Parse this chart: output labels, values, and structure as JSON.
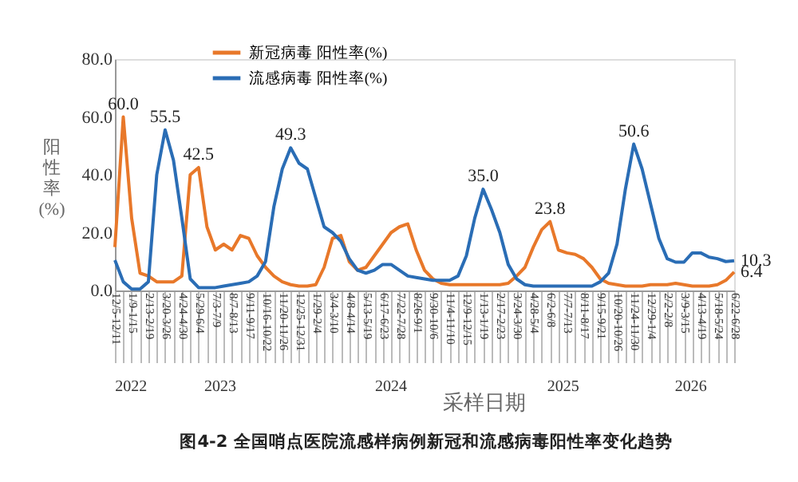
{
  "chart_data": {
    "type": "line",
    "title": "图4-2 全国哨点医院流感样病例新冠和流感病毒阳性率变化趋势",
    "xlabel": "采样日期",
    "ylabel": "阳性率(%)",
    "annotations": [
      "2022",
      "2023",
      "2024",
      "2025",
      "2026"
    ],
    "categories": [
      "12/5-12/11",
      null,
      "1/9-1/15",
      null,
      "2/13-2/19",
      null,
      "3/20-3/26",
      null,
      "4/24-4/30",
      null,
      "5/29-6/4",
      null,
      "7/3-7/9",
      null,
      "8/7-8/13",
      null,
      "9/11-9/17",
      null,
      "10/16-10/22",
      null,
      "11/20-11/26",
      null,
      "12/25-12/31",
      null,
      "1/29-2/4",
      null,
      "3/4-3/10",
      null,
      "4/8-4/14",
      null,
      "5/13-5/19",
      null,
      "6/17-6/23",
      null,
      "7/22-7/28",
      null,
      "8/26-9/1",
      null,
      "9/30-10/6",
      null,
      "11/4-11/10",
      null,
      "12/9-12/15",
      null,
      "1/13-1/19",
      null,
      "2/17-2/23",
      null,
      "3/24-3/30",
      null,
      "4/28-5/4",
      null,
      "6/2-6/8",
      null,
      "7/7-7/13",
      null,
      "8/11-8/17",
      null,
      "9/15-9/21",
      null,
      "10/20-10/26",
      null,
      "11/24-11/30",
      null,
      "12/29-1/4",
      null,
      "2/2-2/8",
      null,
      "3/9-3/15",
      null,
      "4/13-4/19",
      null,
      "5/18-5/24",
      null,
      "6/22-6/28"
    ],
    "series": [
      {
        "name": "新冠病毒 阳性率(%)",
        "color": "#e8782a",
        "values": [
          15,
          60,
          25,
          6,
          5,
          3,
          3,
          3,
          5,
          40,
          42.5,
          22,
          14,
          16,
          14,
          19,
          18,
          12,
          8,
          5,
          3,
          2,
          1.5,
          1.5,
          2,
          8,
          18,
          19,
          10,
          7,
          8,
          12,
          16,
          20,
          22,
          23,
          14,
          7,
          4,
          2.5,
          2,
          2,
          2,
          2,
          2,
          2,
          2,
          2.5,
          5,
          8,
          15,
          21,
          23.8,
          14,
          13,
          12.5,
          11,
          8,
          4,
          2.5,
          2,
          1.5,
          1.5,
          1.5,
          2,
          2,
          2,
          2.5,
          2,
          1.5,
          1.5,
          1.5,
          2,
          3.5,
          6.4
        ],
        "value_labels": [
          null,
          "60.0",
          null,
          null,
          null,
          null,
          null,
          null,
          null,
          null,
          "42.5",
          null,
          null,
          null,
          null,
          null,
          null,
          null,
          null,
          null,
          null,
          null,
          null,
          null,
          null,
          null,
          null,
          null,
          null,
          null,
          null,
          null,
          null,
          null,
          null,
          null,
          null,
          null,
          null,
          null,
          null,
          null,
          null,
          null,
          null,
          null,
          null,
          null,
          null,
          null,
          null,
          null,
          "23.8",
          null,
          null,
          null,
          null,
          null,
          null,
          null,
          null,
          null,
          null,
          null,
          null,
          null,
          null,
          null,
          null,
          null,
          null,
          null,
          null,
          null,
          "6.4"
        ]
      },
      {
        "name": "流感病毒 阳性率(%)",
        "color": "#2a6db5",
        "values": [
          10.5,
          3,
          0.5,
          0.5,
          3,
          40,
          55.5,
          45,
          25,
          4,
          1,
          1,
          1,
          1.5,
          2,
          2.5,
          3,
          5,
          10,
          29,
          42,
          49.3,
          44,
          42,
          32,
          22,
          20,
          17,
          11,
          7,
          6,
          7,
          9,
          9,
          7,
          5,
          4.5,
          4,
          3.5,
          3.5,
          3.5,
          5,
          12,
          25,
          35,
          28,
          20,
          9,
          4,
          2,
          1.5,
          1.5,
          1.5,
          1.5,
          1.5,
          1.5,
          1.5,
          1.5,
          3,
          6,
          16,
          35,
          50.6,
          42,
          30,
          18,
          11,
          9.8,
          9.8,
          13,
          13,
          11.5,
          11,
          10,
          10.3
        ],
        "value_labels": [
          null,
          null,
          null,
          null,
          null,
          null,
          "55.5",
          null,
          null,
          null,
          null,
          null,
          null,
          null,
          null,
          null,
          null,
          null,
          null,
          null,
          null,
          "49.3",
          null,
          null,
          null,
          null,
          null,
          null,
          null,
          null,
          null,
          null,
          null,
          null,
          null,
          null,
          null,
          null,
          null,
          null,
          null,
          null,
          null,
          null,
          "35.0",
          null,
          null,
          null,
          null,
          null,
          null,
          null,
          null,
          null,
          null,
          null,
          null,
          null,
          null,
          null,
          null,
          null,
          "50.6",
          null,
          null,
          null,
          null,
          null,
          null,
          null,
          null,
          null,
          null,
          null,
          "10.3"
        ]
      }
    ],
    "ylim": [
      0,
      80
    ],
    "yticks": [
      {
        "value": 0,
        "label": "0.0"
      },
      {
        "value": 20,
        "label": "20.0"
      },
      {
        "value": 40,
        "label": "40.0"
      },
      {
        "value": 60,
        "label": "60.0"
      },
      {
        "value": 80,
        "label": "80.0"
      }
    ],
    "legend": "top",
    "grid": false,
    "marker": "none",
    "line_style": "solid"
  }
}
